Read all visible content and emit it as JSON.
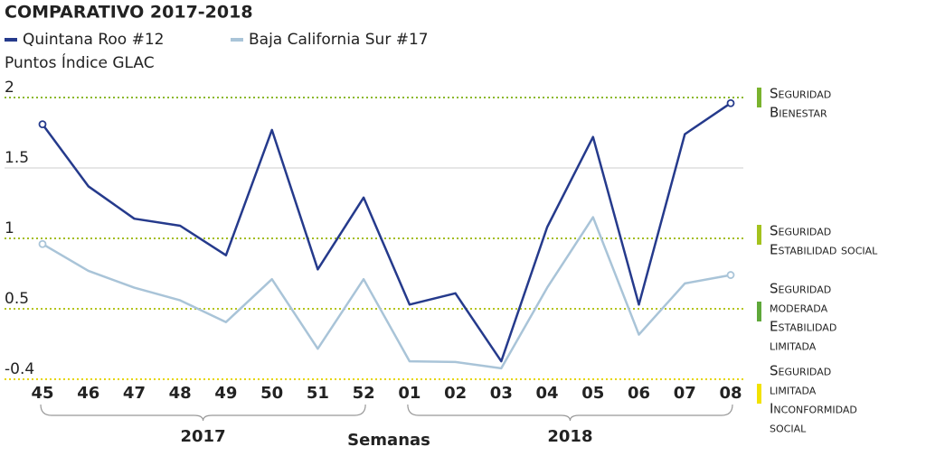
{
  "chart_data": {
    "type": "line",
    "title": "COMPARATIVO 2017-2018",
    "y_label": "Puntos Índice GLAC",
    "x_label": "Semanas",
    "categories": [
      "45",
      "46",
      "47",
      "48",
      "49",
      "50",
      "51",
      "52",
      "01",
      "02",
      "03",
      "04",
      "05",
      "06",
      "07",
      "08"
    ],
    "groups": [
      "2017",
      "2018"
    ],
    "series": [
      {
        "name": "Quintana Roo #12",
        "color": "#253a8c",
        "values": [
          1.81,
          1.37,
          1.14,
          1.09,
          0.88,
          1.77,
          0.78,
          1.29,
          0.53,
          0.61,
          -0.17,
          1.08,
          1.72,
          0.53,
          1.74,
          1.96
        ]
      },
      {
        "name": "Baja California Sur #17",
        "color": "#a9c4d8",
        "values": [
          0.96,
          0.77,
          0.65,
          0.56,
          0.33,
          0.71,
          -0.01,
          0.71,
          -0.17,
          -0.18,
          -0.26,
          0.65,
          1.15,
          0.17,
          0.68,
          0.74
        ]
      }
    ],
    "ylim": [
      -0.4,
      2
    ],
    "yticks": [
      2,
      1.5,
      1,
      0.5,
      -0.4
    ],
    "grid_colors": [
      "#8cb82b",
      "#cccccc",
      "#a4bd1e",
      "#b5c41c",
      "#e6d600"
    ],
    "zones": [
      {
        "color": "#7ab32e",
        "lines": [
          "Seguridad",
          "Bienestar"
        ]
      },
      {
        "color": "#a4c21e",
        "lines": [
          "Seguridad",
          "Estabilidad social"
        ]
      },
      {
        "color": "#5fa83a",
        "lines": [
          "Seguridad",
          "moderada",
          "Estabilidad",
          "limitada"
        ]
      },
      {
        "color": "#f2e200",
        "lines": [
          "Seguridad",
          "limitada",
          "Inconformidad",
          "social"
        ]
      }
    ]
  }
}
